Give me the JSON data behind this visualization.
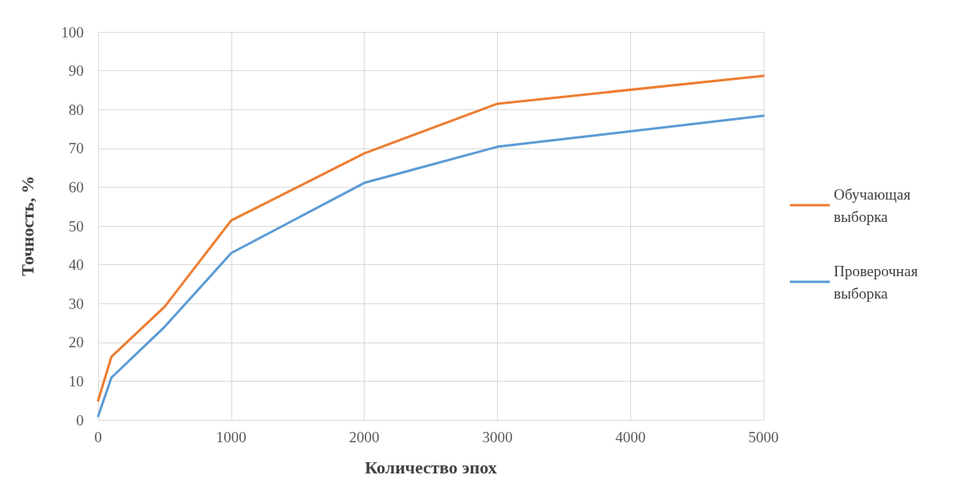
{
  "chart_data": {
    "type": "line",
    "xlabel": "Количество эпох",
    "ylabel": "Точность, %",
    "x": [
      0,
      100,
      500,
      1000,
      2000,
      3000,
      5000
    ],
    "series": [
      {
        "name": "Обучающая выборка",
        "color": "#ed7d31",
        "values": [
          5,
          16.3,
          29.2,
          51.4,
          68.7,
          81.5,
          88.7
        ]
      },
      {
        "name": "Проверочная выборка",
        "color": "#5b9bd5",
        "values": [
          1,
          10.9,
          24,
          43,
          61.1,
          70.4,
          78.4
        ]
      }
    ],
    "xlim": [
      0,
      5000
    ],
    "xticks": [
      0,
      1000,
      2000,
      3000,
      4000,
      5000
    ],
    "ylim": [
      0,
      100
    ],
    "yticks": [
      0,
      10,
      20,
      30,
      40,
      50,
      60,
      70,
      80,
      90,
      100
    ],
    "grid": true,
    "legend": "right",
    "marker": "none",
    "line_style": "solid"
  }
}
